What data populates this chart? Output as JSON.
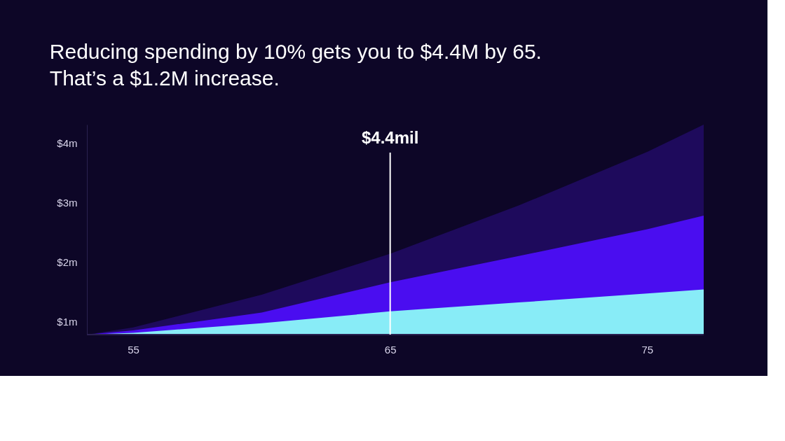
{
  "chart_data": {
    "type": "area",
    "title": "Reducing spending by 10% gets you to $4.4M by 65.\nThat’s a $1.2M increase.",
    "x": [
      53.2,
      55,
      60,
      65,
      70,
      75,
      77.2
    ],
    "series": [
      {
        "color": "#1e0a5c",
        "values": [
          0.78,
          0.9,
          1.45,
          2.14,
          2.95,
          3.85,
          4.31
        ]
      },
      {
        "color": "#4a0df0",
        "values": [
          0.78,
          0.85,
          1.15,
          1.66,
          2.1,
          2.55,
          2.78
        ]
      },
      {
        "color": "#88ecf7",
        "values": [
          0.78,
          0.81,
          0.97,
          1.17,
          1.32,
          1.47,
          1.54
        ]
      }
    ],
    "xlim": [
      53.2,
      77.2
    ],
    "xticks": [
      55,
      65,
      75
    ],
    "ylim": [
      0.78,
      4.31
    ],
    "yticks": [
      {
        "value": 1,
        "label": "$1m"
      },
      {
        "value": 2,
        "label": "$2m"
      },
      {
        "value": 3,
        "label": "$3m"
      },
      {
        "value": 4,
        "label": "$4m"
      }
    ],
    "ref_lines": [
      {
        "axis": "x",
        "value": 65,
        "label": "$4.4mil",
        "color": "#ffffff"
      }
    ],
    "grid": false
  }
}
